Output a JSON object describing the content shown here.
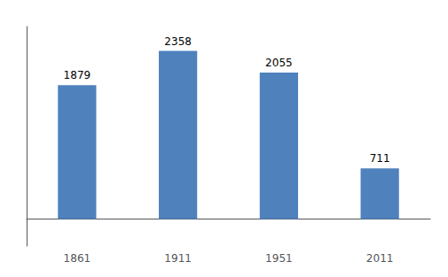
{
  "chart_data": {
    "type": "bar",
    "categories": [
      "1861",
      "1911",
      "1951",
      "2011"
    ],
    "values": [
      1879,
      2358,
      2055,
      711
    ],
    "color": "#4f81bd",
    "ylim": [
      -378,
      2700
    ],
    "yticks": [],
    "grid": false,
    "data_labels": true,
    "tick_labels": "x"
  }
}
